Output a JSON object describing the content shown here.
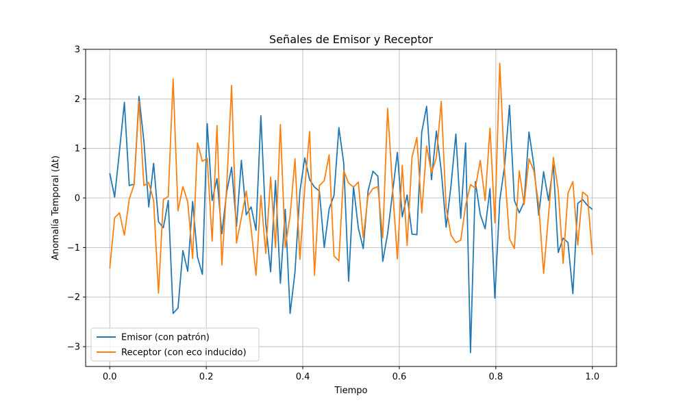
{
  "chart_data": {
    "type": "line",
    "title": "Señales de Emisor y Receptor",
    "xlabel": "Tiempo",
    "ylabel": "Anomalía Temporal (Δt)",
    "xlim": [
      -0.05,
      1.05
    ],
    "ylim": [
      -3.4,
      3.0
    ],
    "xticks": [
      0.0,
      0.2,
      0.4,
      0.6,
      0.8,
      1.0
    ],
    "xtick_labels": [
      "0.0",
      "0.2",
      "0.4",
      "0.6",
      "0.8",
      "1.0"
    ],
    "yticks": [
      -3,
      -2,
      -1,
      0,
      1,
      2,
      3
    ],
    "ytick_labels": [
      "−3",
      "−2",
      "−1",
      "0",
      "1",
      "2",
      "3"
    ],
    "grid": true,
    "legend_position": "lower-left",
    "series": [
      {
        "name": "Emisor (con patrón)",
        "color": "#1f77b4",
        "values": [
          0.5,
          0.02,
          0.95,
          1.93,
          0.25,
          0.28,
          2.05,
          1.15,
          -0.18,
          0.7,
          -0.48,
          -0.6,
          -0.05,
          -2.33,
          -2.22,
          -1.06,
          -1.48,
          -0.07,
          -1.19,
          -1.54,
          1.5,
          -0.05,
          0.39,
          -0.72,
          0.13,
          0.62,
          -0.57,
          0.76,
          -0.34,
          -0.18,
          -0.65,
          1.66,
          -0.51,
          -1.49,
          0.35,
          -1.72,
          -0.23,
          -2.33,
          -1.49,
          0.13,
          0.81,
          0.37,
          0.22,
          0.14,
          -1.0,
          -0.22,
          0.05,
          1.42,
          0.7,
          -1.68,
          0.23,
          -0.61,
          -1.02,
          0.15,
          0.54,
          0.44,
          -1.28,
          -0.72,
          0.1,
          0.92,
          -0.38,
          0.06,
          -0.73,
          -0.74,
          1.33,
          1.85,
          0.37,
          1.35,
          0.55,
          -0.59,
          0.25,
          1.29,
          -0.41,
          1.11,
          -3.12,
          0.33,
          -0.33,
          -0.62,
          0.19,
          -2.02,
          -0.05,
          0.65,
          1.87,
          -0.05,
          -0.3,
          -0.08,
          1.33,
          0.66,
          -0.35,
          0.53,
          -0.05,
          0.66,
          -1.1,
          -0.81,
          -0.9,
          -1.93,
          -0.11,
          -0.03,
          -0.15,
          -0.23
        ]
      },
      {
        "name": "Receptor (con eco inducido)",
        "color": "#ff7f0e",
        "values": [
          -1.42,
          -0.4,
          -0.3,
          -0.75,
          -0.02,
          0.27,
          1.95,
          0.25,
          0.31,
          -0.05,
          -1.92,
          -0.03,
          0.03,
          2.4,
          -0.26,
          0.23,
          -0.08,
          -1.22,
          1.11,
          0.74,
          0.8,
          -0.87,
          1.46,
          -1.35,
          0.26,
          2.27,
          -0.91,
          -0.4,
          0.14,
          -0.62,
          -1.56,
          0.05,
          -1.12,
          0.42,
          -1.0,
          1.48,
          -1.0,
          -0.35,
          0.79,
          -1.24,
          0.2,
          1.34,
          -1.56,
          0.25,
          0.35,
          0.87,
          -1.17,
          -1.27,
          0.55,
          0.3,
          0.22,
          0.32,
          -0.8,
          0.05,
          0.19,
          0.23,
          -0.8,
          1.81,
          0.22,
          -1.23,
          0.66,
          -0.96,
          0.82,
          1.22,
          -0.3,
          1.05,
          0.5,
          0.82,
          1.95,
          -0.2,
          -0.75,
          -0.9,
          -0.85,
          -0.15,
          0.27,
          0.2,
          0.76,
          -0.05,
          1.41,
          -0.5,
          2.72,
          0.55,
          -0.82,
          -1.02,
          0.55,
          -0.13,
          0.79,
          0.55,
          -0.15,
          -1.52,
          -0.35,
          0.82,
          0.15,
          -1.32,
          0.1,
          0.33,
          -0.95,
          0.12,
          0.04,
          -1.15
        ]
      }
    ]
  }
}
